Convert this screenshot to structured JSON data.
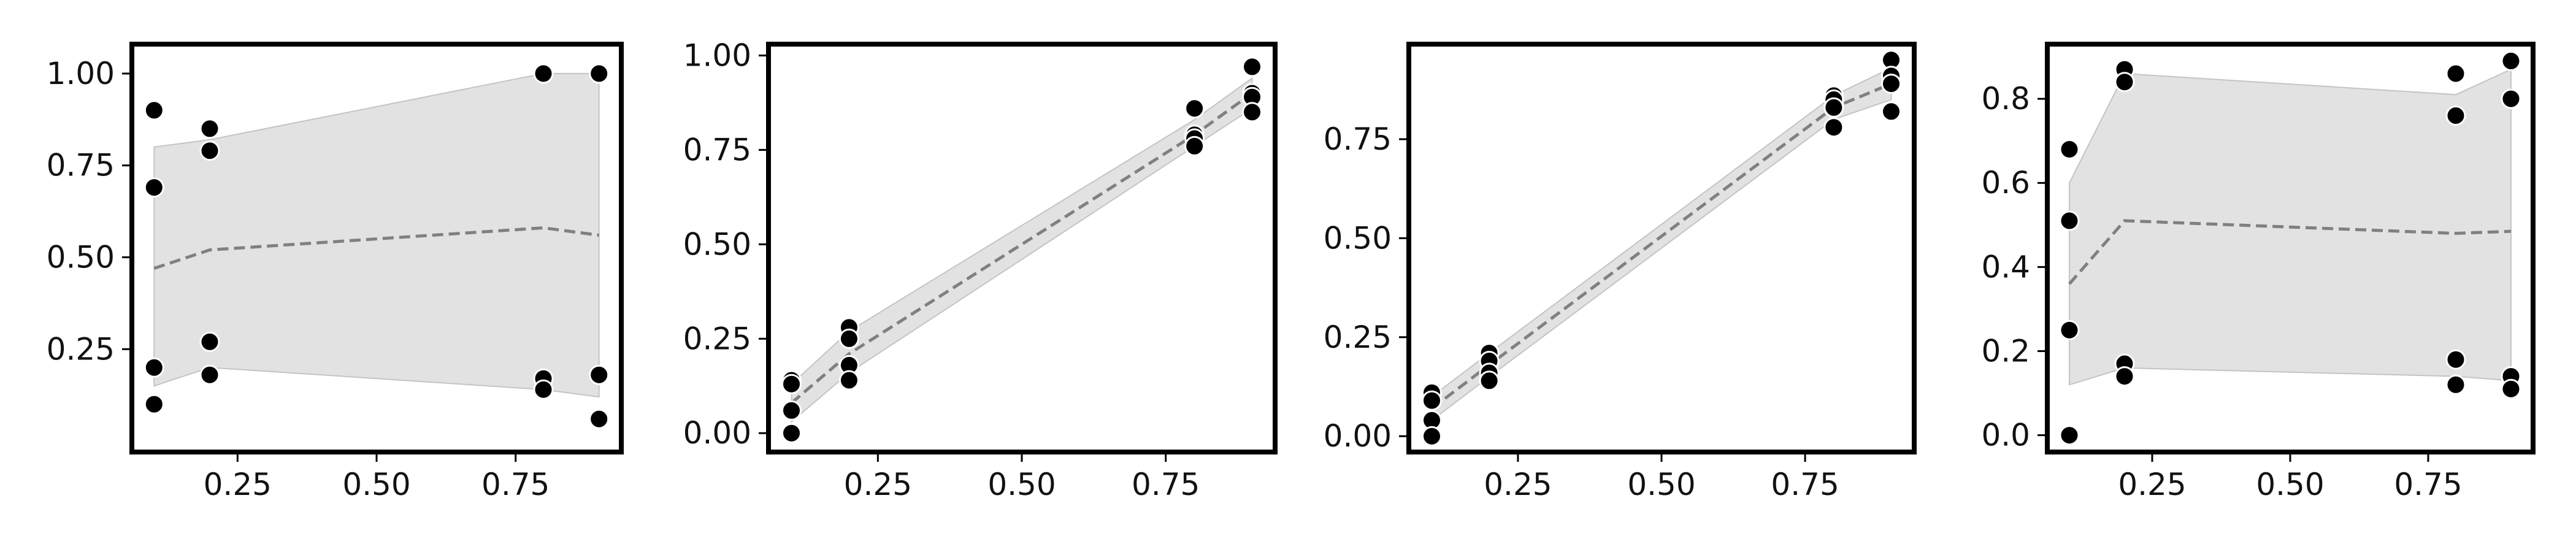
{
  "chart_data": [
    {
      "type": "scatter",
      "title": "",
      "xlabel": "",
      "ylabel": "",
      "xlim": [
        0.06,
        0.94
      ],
      "ylim": [
        -0.03,
        1.08
      ],
      "xticks": [
        {
          "v": 0.25,
          "label": "0.25"
        },
        {
          "v": 0.5,
          "label": "0.50"
        },
        {
          "v": 0.75,
          "label": "0.75"
        }
      ],
      "yticks": [
        {
          "v": 0.25,
          "label": "0.25"
        },
        {
          "v": 0.5,
          "label": "0.50"
        },
        {
          "v": 0.75,
          "label": "0.75"
        },
        {
          "v": 1.0,
          "label": "1.00"
        }
      ],
      "grid": false,
      "points": [
        [
          0.1,
          0.9
        ],
        [
          0.1,
          0.69
        ],
        [
          0.1,
          0.2
        ],
        [
          0.1,
          0.1
        ],
        [
          0.2,
          0.85
        ],
        [
          0.2,
          0.79
        ],
        [
          0.2,
          0.27
        ],
        [
          0.2,
          0.18
        ],
        [
          0.8,
          1.0
        ],
        [
          0.8,
          1.0
        ],
        [
          0.8,
          0.17
        ],
        [
          0.8,
          0.14
        ],
        [
          0.9,
          1.0
        ],
        [
          0.9,
          1.0
        ],
        [
          0.9,
          0.18
        ],
        [
          0.9,
          0.06
        ]
      ],
      "mean_line": {
        "x": [
          0.1,
          0.2,
          0.8,
          0.9
        ],
        "y": [
          0.47,
          0.52,
          0.58,
          0.56
        ]
      },
      "band": {
        "x": [
          0.1,
          0.2,
          0.8,
          0.9
        ],
        "lower": [
          0.15,
          0.2,
          0.14,
          0.12
        ],
        "upper": [
          0.8,
          0.82,
          1.0,
          1.0
        ]
      }
    },
    {
      "type": "scatter",
      "title": "",
      "xlabel": "",
      "ylabel": "",
      "xlim": [
        0.06,
        0.94
      ],
      "ylim": [
        -0.05,
        1.03
      ],
      "xticks": [
        {
          "v": 0.25,
          "label": "0.25"
        },
        {
          "v": 0.5,
          "label": "0.50"
        },
        {
          "v": 0.75,
          "label": "0.75"
        }
      ],
      "yticks": [
        {
          "v": 0.0,
          "label": "0.00"
        },
        {
          "v": 0.25,
          "label": "0.25"
        },
        {
          "v": 0.5,
          "label": "0.50"
        },
        {
          "v": 0.75,
          "label": "0.75"
        },
        {
          "v": 1.0,
          "label": "1.00"
        }
      ],
      "grid": false,
      "points": [
        [
          0.1,
          0.14
        ],
        [
          0.1,
          0.13
        ],
        [
          0.1,
          0.06
        ],
        [
          0.1,
          0.0
        ],
        [
          0.2,
          0.28
        ],
        [
          0.2,
          0.25
        ],
        [
          0.2,
          0.18
        ],
        [
          0.2,
          0.14
        ],
        [
          0.8,
          0.86
        ],
        [
          0.8,
          0.79
        ],
        [
          0.8,
          0.78
        ],
        [
          0.8,
          0.76
        ],
        [
          0.9,
          0.97
        ],
        [
          0.9,
          0.9
        ],
        [
          0.9,
          0.89
        ],
        [
          0.9,
          0.85
        ]
      ],
      "mean_line": {
        "x": [
          0.1,
          0.2,
          0.8,
          0.9
        ],
        "y": [
          0.08,
          0.21,
          0.79,
          0.9
        ]
      },
      "band": {
        "x": [
          0.1,
          0.2,
          0.8,
          0.9
        ],
        "lower": [
          0.03,
          0.16,
          0.76,
          0.86
        ],
        "upper": [
          0.13,
          0.27,
          0.83,
          0.94
        ]
      }
    },
    {
      "type": "scatter",
      "title": "",
      "xlabel": "",
      "ylabel": "",
      "xlim": [
        0.06,
        0.94
      ],
      "ylim": [
        -0.04,
        0.99
      ],
      "xticks": [
        {
          "v": 0.25,
          "label": "0.25"
        },
        {
          "v": 0.5,
          "label": "0.50"
        },
        {
          "v": 0.75,
          "label": "0.75"
        }
      ],
      "yticks": [
        {
          "v": 0.0,
          "label": "0.00"
        },
        {
          "v": 0.25,
          "label": "0.25"
        },
        {
          "v": 0.5,
          "label": "0.50"
        },
        {
          "v": 0.75,
          "label": "0.75"
        }
      ],
      "grid": false,
      "points": [
        [
          0.1,
          0.11
        ],
        [
          0.1,
          0.09
        ],
        [
          0.1,
          0.04
        ],
        [
          0.1,
          0.0
        ],
        [
          0.2,
          0.21
        ],
        [
          0.2,
          0.19
        ],
        [
          0.2,
          0.16
        ],
        [
          0.2,
          0.14
        ],
        [
          0.8,
          0.86
        ],
        [
          0.8,
          0.85
        ],
        [
          0.8,
          0.83
        ],
        [
          0.8,
          0.78
        ],
        [
          0.9,
          0.95
        ],
        [
          0.9,
          0.91
        ],
        [
          0.9,
          0.89
        ],
        [
          0.9,
          0.82
        ]
      ],
      "mean_line": {
        "x": [
          0.1,
          0.2,
          0.8,
          0.9
        ],
        "y": [
          0.07,
          0.18,
          0.83,
          0.89
        ]
      },
      "band": {
        "x": [
          0.1,
          0.2,
          0.8,
          0.9
        ],
        "lower": [
          0.04,
          0.15,
          0.8,
          0.85
        ],
        "upper": [
          0.1,
          0.21,
          0.86,
          0.93
        ]
      }
    },
    {
      "type": "scatter",
      "title": "",
      "xlabel": "",
      "ylabel": "",
      "xlim": [
        0.06,
        0.94
      ],
      "ylim": [
        -0.04,
        0.93
      ],
      "xticks": [
        {
          "v": 0.25,
          "label": "0.25"
        },
        {
          "v": 0.5,
          "label": "0.50"
        },
        {
          "v": 0.75,
          "label": "0.75"
        }
      ],
      "yticks": [
        {
          "v": 0.0,
          "label": "0.0"
        },
        {
          "v": 0.2,
          "label": "0.2"
        },
        {
          "v": 0.4,
          "label": "0.4"
        },
        {
          "v": 0.6,
          "label": "0.6"
        },
        {
          "v": 0.8,
          "label": "0.8"
        }
      ],
      "grid": false,
      "points": [
        [
          0.1,
          0.68
        ],
        [
          0.1,
          0.51
        ],
        [
          0.1,
          0.25
        ],
        [
          0.1,
          0.0
        ],
        [
          0.2,
          0.87
        ],
        [
          0.2,
          0.84
        ],
        [
          0.2,
          0.17
        ],
        [
          0.2,
          0.14
        ],
        [
          0.8,
          0.86
        ],
        [
          0.8,
          0.76
        ],
        [
          0.8,
          0.18
        ],
        [
          0.8,
          0.12
        ],
        [
          0.9,
          0.89
        ],
        [
          0.9,
          0.8
        ],
        [
          0.9,
          0.14
        ],
        [
          0.9,
          0.11
        ]
      ],
      "mean_line": {
        "x": [
          0.1,
          0.2,
          0.8,
          0.9
        ],
        "y": [
          0.36,
          0.51,
          0.48,
          0.485
        ]
      },
      "band": {
        "x": [
          0.1,
          0.2,
          0.8,
          0.9
        ],
        "lower": [
          0.12,
          0.16,
          0.14,
          0.13
        ],
        "upper": [
          0.6,
          0.86,
          0.81,
          0.87
        ]
      }
    }
  ]
}
